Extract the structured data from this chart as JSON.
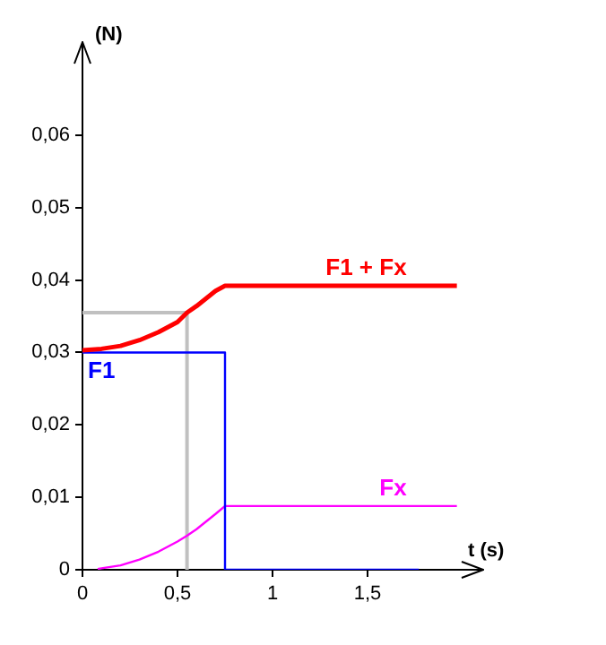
{
  "chart_data": {
    "type": "line",
    "xlabel": "t (s)",
    "ylabel": "(N)",
    "xlim": [
      0,
      2
    ],
    "ylim": [
      0,
      0.07
    ],
    "xticks": [
      0,
      {
        "value": 0.5,
        "label": "0,5"
      },
      1,
      {
        "value": 1.5,
        "label": "1,5"
      }
    ],
    "yticks": [
      0,
      {
        "value": 0.01,
        "label": "0,01"
      },
      {
        "value": 0.02,
        "label": "0,02"
      },
      {
        "value": 0.03,
        "label": "0,03"
      },
      {
        "value": 0.04,
        "label": "0,04"
      },
      {
        "value": 0.05,
        "label": "0,05"
      },
      {
        "value": 0.06,
        "label": "0,06"
      }
    ],
    "grid": false,
    "legend": false,
    "marker": "none",
    "line_style": "solid",
    "series": [
      {
        "name": "F1 + Fx",
        "color": "#ff0000",
        "x": [
          0,
          0.1,
          0.2,
          0.3,
          0.4,
          0.5,
          0.55,
          0.6,
          0.7,
          0.75,
          1.97
        ],
        "values": [
          0.0303,
          0.0305,
          0.0309,
          0.0317,
          0.0328,
          0.0342,
          0.0355,
          0.0364,
          0.0385,
          0.0392,
          0.0392
        ]
      },
      {
        "name": "F1",
        "color": "#0000ff",
        "x": [
          0,
          0.75,
          0.75,
          1.77
        ],
        "values": [
          0.03,
          0.03,
          0,
          0
        ]
      },
      {
        "name": "Fx",
        "color": "#ff00ff",
        "x": [
          0.08,
          0.1,
          0.2,
          0.3,
          0.4,
          0.5,
          0.55,
          0.6,
          0.7,
          0.75,
          1.97
        ],
        "values": [
          0.0001,
          0.0002,
          0.0006,
          0.0014,
          0.0025,
          0.0039,
          0.0047,
          0.0056,
          0.0077,
          0.0088,
          0.0088
        ]
      },
      {
        "color": "#c0c0c0",
        "x": [
          0,
          0.55,
          0.55
        ],
        "values": [
          0.0355,
          0.0355,
          0
        ]
      }
    ]
  }
}
